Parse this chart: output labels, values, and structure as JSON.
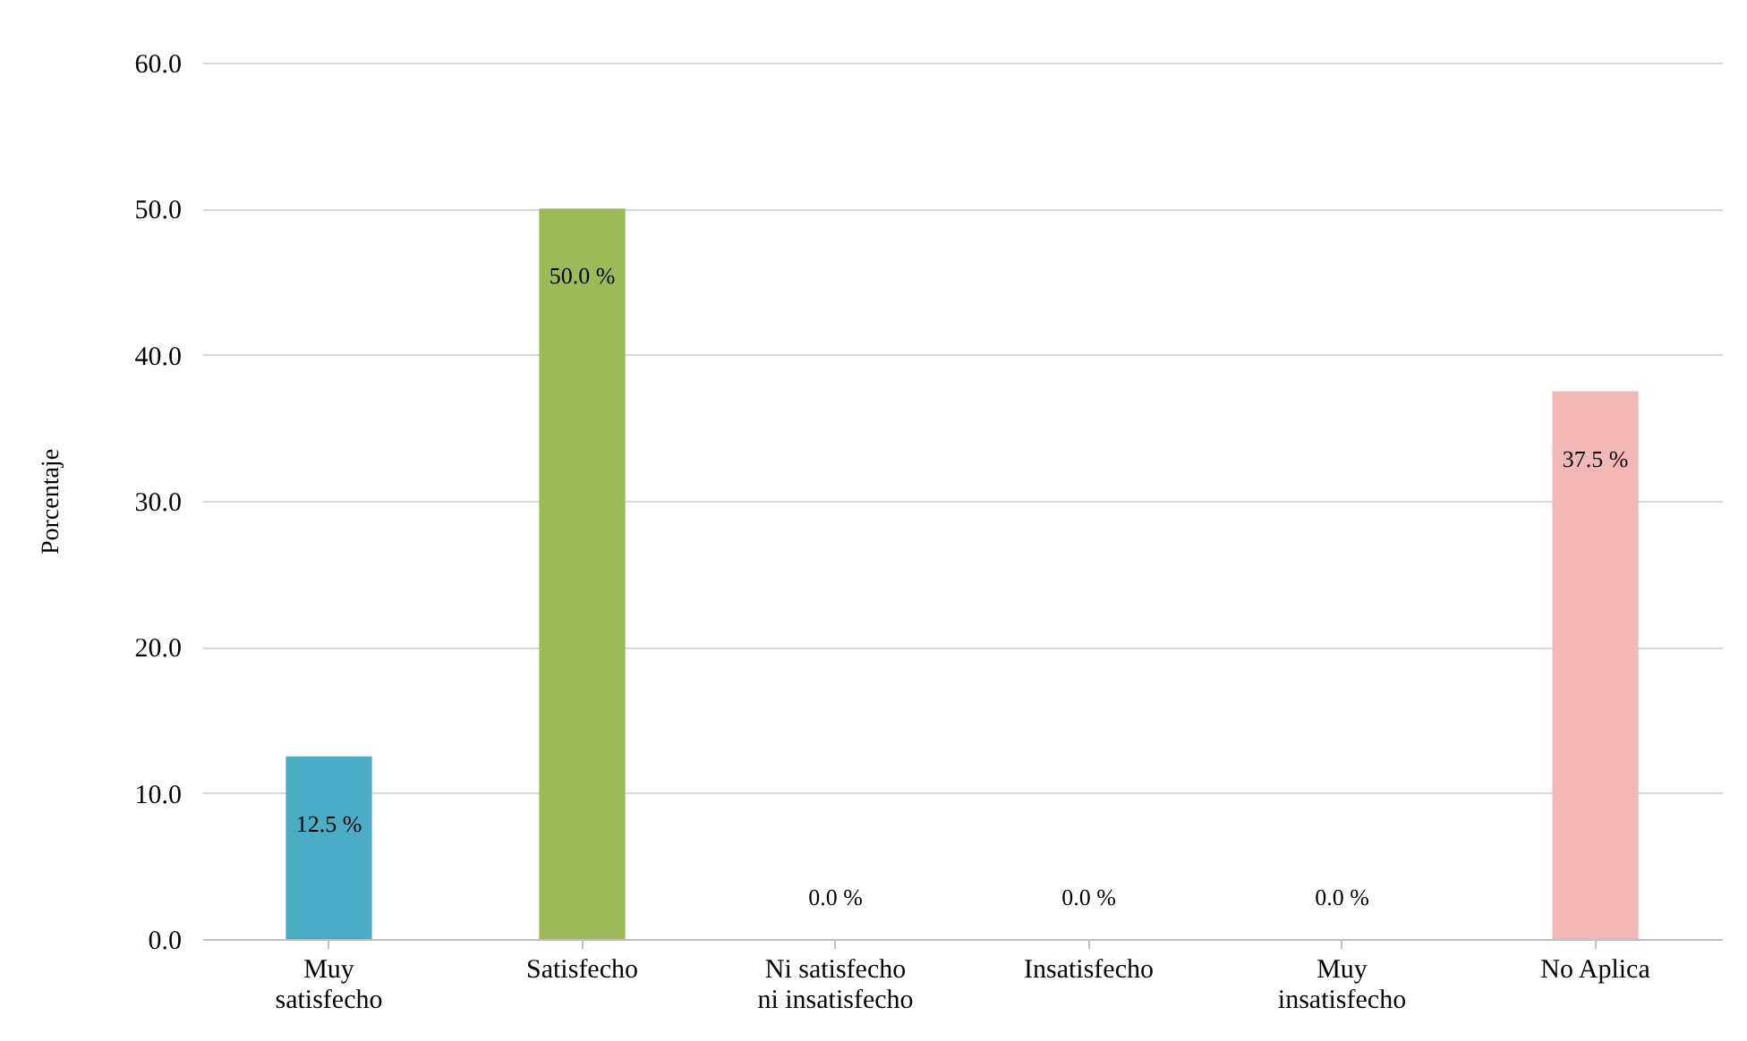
{
  "chart_data": {
    "type": "bar",
    "ylabel": "Porcentaje",
    "categories": [
      "Muy satisfecho",
      "Satisfecho",
      "Ni satisfecho ni insatisfecho",
      "Insatisfecho",
      "Muy insatisfecho",
      "No Aplica"
    ],
    "values": [
      12.5,
      50.0,
      0.0,
      0.0,
      0.0,
      37.5
    ],
    "colors": [
      "#4bacc6",
      "#9bbb59",
      "#8064a2",
      "#f79646",
      "#c0504d",
      "#f2b8b8"
    ],
    "value_labels": [
      "12.5 %",
      "50.0 %",
      "0.0 %",
      "0.0 %",
      "0.0 %",
      "37.5 %"
    ],
    "ylim": [
      0,
      60
    ],
    "yticks": [
      {
        "value": 0,
        "label": "0.0"
      },
      {
        "value": 10,
        "label": "10.0"
      },
      {
        "value": 20,
        "label": "20.0"
      },
      {
        "value": 30,
        "label": "30.0"
      },
      {
        "value": 40,
        "label": "40.0"
      },
      {
        "value": 50,
        "label": "50.0"
      },
      {
        "value": 60,
        "label": "60.0"
      }
    ],
    "grid": "y"
  }
}
